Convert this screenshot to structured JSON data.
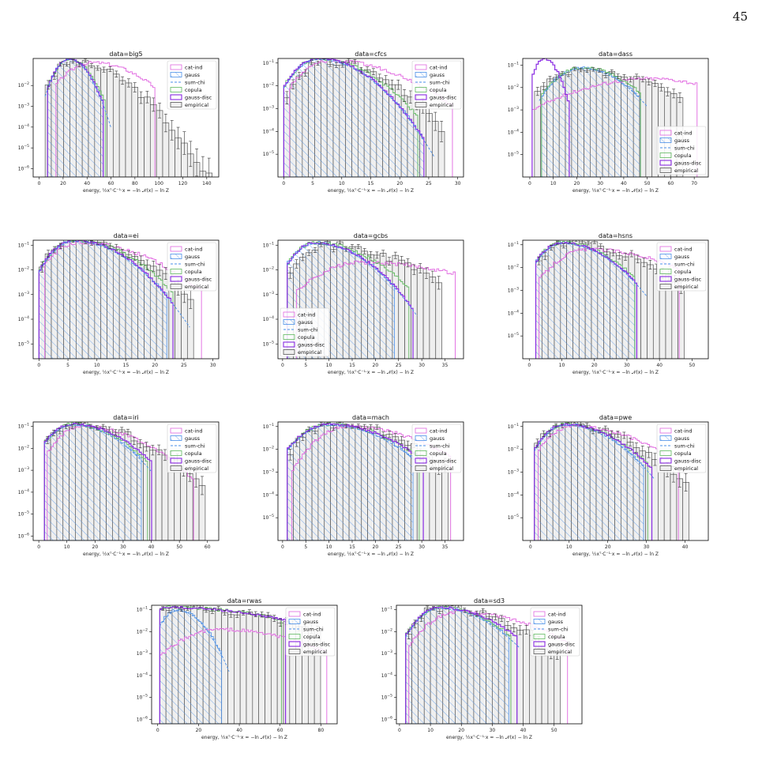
{
  "page": {
    "number": "45"
  },
  "chart_data": [
    {
      "type": "histogram",
      "title": "data=big5",
      "xlabel": "energy, ½xᵀ·C⁻¹·x = −ln 𝒩(x) − ln Z",
      "xlim": [
        -5,
        150
      ],
      "ylim": [
        -6.4,
        -0.7
      ],
      "xticks": [
        0,
        20,
        40,
        60,
        80,
        100,
        120,
        140
      ],
      "yticks": [
        -6,
        -5,
        -4,
        -3,
        -2
      ],
      "legend_position": "top-right",
      "peaks": {
        "cat-ind": [
          45,
          -0.9,
          14,
          22
        ],
        "gauss": [
          25,
          -0.7,
          7,
          9
        ],
        "copula": [
          25,
          -0.75,
          7,
          10
        ],
        "gauss-disc": [
          25,
          -0.7,
          7,
          9
        ],
        "empirical": [
          27,
          -0.9,
          9,
          22
        ]
      },
      "ranges": {
        "cat-ind": [
          14,
          95
        ],
        "gauss": [
          7,
          52
        ],
        "copula": [
          7,
          55
        ],
        "gauss-disc": [
          7,
          52
        ],
        "empirical": [
          5,
          140
        ]
      },
      "sum_chi_range": [
        5,
        60
      ]
    },
    {
      "type": "histogram",
      "title": "data=cfcs",
      "xlabel": "energy, ½xᵀ·C⁻¹·x = −ln 𝒩(x) − ln Z",
      "xlim": [
        -1,
        31
      ],
      "ylim": [
        -6,
        -0.8
      ],
      "xticks": [
        0,
        5,
        10,
        15,
        20,
        25,
        30
      ],
      "yticks": [
        -5,
        -4,
        -3,
        -2,
        -1
      ],
      "legend_position": "top-right",
      "peaks": {
        "cat-ind": [
          8,
          -0.9,
          3,
          7
        ],
        "gauss": [
          6,
          -0.8,
          2.5,
          4.5
        ],
        "copula": [
          6,
          -0.8,
          2.5,
          5
        ],
        "gauss-disc": [
          6,
          -0.8,
          2.5,
          4.5
        ],
        "empirical": [
          7,
          -0.9,
          2.5,
          5.5
        ]
      },
      "ranges": {
        "cat-ind": [
          1,
          29
        ],
        "gauss": [
          0,
          24
        ],
        "copula": [
          0,
          23
        ],
        "gauss-disc": [
          0,
          24
        ],
        "empirical": [
          0,
          27
        ]
      },
      "sum_chi_range": [
        0,
        26
      ]
    },
    {
      "type": "histogram",
      "title": "data=dass",
      "xlabel": "energy, ½xᵀ·C⁻¹·x = −ln 𝒩(x) − ln Z",
      "xlim": [
        -3,
        76
      ],
      "ylim": [
        -6,
        -0.7
      ],
      "xticks": [
        0,
        10,
        20,
        30,
        40,
        50,
        60,
        70
      ],
      "yticks": [
        -5,
        -4,
        -3,
        -2,
        -1
      ],
      "legend_position": "bottom-right",
      "peaks": {
        "cat-ind": [
          52,
          -1.6,
          20,
          18
        ],
        "gauss": [
          22,
          -1.1,
          7,
          10
        ],
        "copula": [
          22,
          -1.1,
          7,
          11
        ],
        "gauss-disc": [
          6,
          -0.7,
          2.5,
          3.5
        ],
        "empirical": [
          22,
          -1.3,
          9,
          18
        ]
      },
      "ranges": {
        "cat-ind": [
          1,
          71
        ],
        "gauss": [
          5,
          47
        ],
        "copula": [
          5,
          47
        ],
        "gauss-disc": [
          1,
          16
        ],
        "empirical": [
          2,
          65
        ]
      },
      "sum_chi_range": [
        4,
        50
      ]
    },
    {
      "type": "histogram",
      "title": "data=ei",
      "xlabel": "energy, ½xᵀ·C⁻¹·x = −ln 𝒩(x) − ln Z",
      "xlim": [
        -1,
        31
      ],
      "ylim": [
        -5.6,
        -0.8
      ],
      "xticks": [
        0,
        5,
        10,
        15,
        20,
        25,
        30
      ],
      "yticks": [
        -5,
        -4,
        -3,
        -2,
        -1
      ],
      "legend_position": "top-right",
      "peaks": {
        "cat-ind": [
          7,
          -0.9,
          3,
          7
        ],
        "gauss": [
          6,
          -0.8,
          2.5,
          5
        ],
        "copula": [
          6,
          -0.8,
          2.5,
          5.5
        ],
        "gauss-disc": [
          6,
          -0.8,
          2.5,
          5
        ],
        "empirical": [
          6,
          -0.8,
          2.5,
          6
        ]
      },
      "ranges": {
        "cat-ind": [
          1,
          28
        ],
        "gauss": [
          0,
          22
        ],
        "copula": [
          0,
          23
        ],
        "gauss-disc": [
          0,
          23
        ],
        "empirical": [
          0,
          26
        ]
      },
      "sum_chi_range": [
        0,
        26
      ]
    },
    {
      "type": "histogram",
      "title": "data=gcbs",
      "xlabel": "energy, ½xᵀ·C⁻¹·x = −ln 𝒩(x) − ln Z",
      "xlim": [
        -1,
        39
      ],
      "ylim": [
        -5.6,
        -0.8
      ],
      "xticks": [
        0,
        5,
        10,
        15,
        20,
        25,
        30,
        35
      ],
      "yticks": [
        -5,
        -4,
        -3,
        -2,
        -1
      ],
      "legend_position": "bottom-left",
      "peaks": {
        "cat-ind": [
          17,
          -1.7,
          6,
          14
        ],
        "gauss": [
          7,
          -0.9,
          3,
          6
        ],
        "copula": [
          7,
          -0.9,
          3,
          7
        ],
        "gauss-disc": [
          7,
          -0.9,
          3,
          6
        ],
        "empirical": [
          8,
          -1.0,
          3,
          10
        ]
      },
      "ranges": {
        "cat-ind": [
          3,
          37
        ],
        "gauss": [
          1,
          24
        ],
        "copula": [
          1,
          27
        ],
        "gauss-disc": [
          1,
          28
        ],
        "empirical": [
          1,
          33
        ]
      },
      "sum_chi_range": [
        1,
        29
      ]
    },
    {
      "type": "histogram",
      "title": "data=hsns",
      "xlabel": "energy, ½xᵀ·C⁻¹·x = −ln 𝒩(x) − ln Z",
      "xlim": [
        -2,
        55
      ],
      "ylim": [
        -6,
        -0.8
      ],
      "xticks": [
        0,
        10,
        20,
        30,
        40,
        50
      ],
      "yticks": [
        -5,
        -4,
        -3,
        -2,
        -1
      ],
      "legend_position": "top-right",
      "peaks": {
        "cat-ind": [
          18,
          -1.2,
          6,
          14
        ],
        "gauss": [
          10,
          -0.9,
          4,
          8
        ],
        "copula": [
          10,
          -0.9,
          4,
          8.5
        ],
        "gauss-disc": [
          10,
          -0.9,
          4,
          8
        ],
        "empirical": [
          11,
          -0.9,
          4,
          12
        ]
      },
      "ranges": {
        "cat-ind": [
          3,
          46
        ],
        "gauss": [
          2,
          32
        ],
        "copula": [
          2,
          32
        ],
        "gauss-disc": [
          2,
          33
        ],
        "empirical": [
          2,
          47
        ]
      },
      "sum_chi_range": [
        2,
        36
      ]
    },
    {
      "type": "histogram",
      "title": "data=iri",
      "xlabel": "energy, ½xᵀ·C⁻¹·x = −ln 𝒩(x) − ln Z",
      "xlim": [
        -2,
        64
      ],
      "ylim": [
        -6.2,
        -0.8
      ],
      "xticks": [
        0,
        10,
        20,
        30,
        40,
        50,
        60
      ],
      "yticks": [
        -6,
        -5,
        -4,
        -3,
        -2,
        -1
      ],
      "legend_position": "top-right",
      "peaks": {
        "cat-ind": [
          15,
          -1.0,
          5,
          12
        ],
        "gauss": [
          12,
          -0.9,
          5,
          9
        ],
        "copula": [
          12,
          -0.9,
          5,
          9.5
        ],
        "gauss-disc": [
          12,
          -0.9,
          5,
          10
        ],
        "empirical": [
          12,
          -0.9,
          5,
          13
        ]
      },
      "ranges": {
        "cat-ind": [
          3,
          55
        ],
        "gauss": [
          2,
          36
        ],
        "copula": [
          2,
          38
        ],
        "gauss-disc": [
          2,
          40
        ],
        "empirical": [
          2,
          58
        ]
      },
      "sum_chi_range": [
        2,
        40
      ]
    },
    {
      "type": "histogram",
      "title": "data=mach",
      "xlabel": "energy, ½xᵀ·C⁻¹·x = −ln 𝒩(x) − ln Z",
      "xlim": [
        -1,
        39
      ],
      "ylim": [
        -6,
        -0.8
      ],
      "xticks": [
        0,
        5,
        10,
        15,
        20,
        25,
        30,
        35
      ],
      "yticks": [
        -5,
        -4,
        -3,
        -2,
        -1
      ],
      "legend_position": "top-right",
      "peaks": {
        "cat-ind": [
          14,
          -1.0,
          4,
          9
        ],
        "gauss": [
          10,
          -0.9,
          4,
          7
        ],
        "copula": [
          10,
          -0.9,
          4,
          7.5
        ],
        "gauss-disc": [
          10,
          -0.9,
          4,
          7.5
        ],
        "empirical": [
          11,
          -0.9,
          4,
          8
        ]
      },
      "ranges": {
        "cat-ind": [
          2,
          36
        ],
        "gauss": [
          1,
          28
        ],
        "copula": [
          1,
          29
        ],
        "gauss-disc": [
          1,
          30
        ],
        "empirical": [
          1,
          35
        ]
      },
      "sum_chi_range": [
        1,
        31
      ]
    },
    {
      "type": "histogram",
      "title": "data=pwe",
      "xlabel": "energy, ½xᵀ·C⁻¹·x = −ln 𝒩(x) − ln Z",
      "xlim": [
        -2,
        46
      ],
      "ylim": [
        -6,
        -0.8
      ],
      "xticks": [
        0,
        10,
        20,
        30,
        40
      ],
      "yticks": [
        -5,
        -4,
        -3,
        -2,
        -1
      ],
      "legend_position": "top-right",
      "peaks": {
        "cat-ind": [
          11,
          -1.0,
          4,
          10
        ],
        "gauss": [
          9,
          -0.9,
          3.5,
          7
        ],
        "copula": [
          9,
          -0.9,
          3.5,
          7.5
        ],
        "gauss-disc": [
          9,
          -0.9,
          3.5,
          7.5
        ],
        "empirical": [
          9,
          -0.9,
          3.5,
          9
        ]
      },
      "ranges": {
        "cat-ind": [
          2,
          38
        ],
        "gauss": [
          1,
          29
        ],
        "copula": [
          1,
          30
        ],
        "gauss-disc": [
          1,
          31
        ],
        "empirical": [
          1,
          40
        ]
      },
      "sum_chi_range": [
        1,
        32
      ]
    },
    {
      "type": "histogram",
      "title": "data=rwas",
      "xlabel": "energy, ½xᵀ·C⁻¹·x = −ln 𝒩(x) − ln Z",
      "xlim": [
        -3,
        88
      ],
      "ylim": [
        -6.2,
        -0.8
      ],
      "xticks": [
        0,
        20,
        40,
        60,
        80
      ],
      "yticks": [
        -6,
        -5,
        -4,
        -3,
        -2,
        -1
      ],
      "legend_position": "top-right",
      "peaks": {
        "cat-ind": [
          30,
          -1.9,
          12,
          24
        ],
        "gauss": [
          10,
          -1.0,
          5,
          7
        ],
        "copula": [
          5,
          -0.9,
          5,
          35
        ],
        "gauss-disc": [
          5,
          -0.9,
          5,
          35
        ],
        "empirical": [
          4,
          -0.9,
          5,
          35
        ]
      },
      "ranges": {
        "cat-ind": [
          1,
          82
        ],
        "gauss": [
          1,
          31
        ],
        "copula": [
          1,
          60
        ],
        "gauss-disc": [
          1,
          62
        ],
        "empirical": [
          1,
          78
        ]
      },
      "sum_chi_range": [
        1,
        35
      ]
    },
    {
      "type": "histogram",
      "title": "data=sd3",
      "xlabel": "energy, ½xᵀ·C⁻¹·x = −ln 𝒩(x) − ln Z",
      "xlim": [
        -1,
        59
      ],
      "ylim": [
        -6.2,
        -0.8
      ],
      "xticks": [
        0,
        10,
        20,
        30,
        40,
        50
      ],
      "yticks": [
        -6,
        -5,
        -4,
        -3,
        -2,
        -1
      ],
      "legend_position": "top-right",
      "peaks": {
        "cat-ind": [
          19,
          -1.1,
          6,
          14
        ],
        "gauss": [
          13,
          -0.9,
          4.5,
          9
        ],
        "copula": [
          13,
          -0.9,
          4.5,
          9.5
        ],
        "gauss-disc": [
          13,
          -0.9,
          4.5,
          10
        ],
        "empirical": [
          13,
          -0.9,
          4.5,
          12
        ]
      },
      "ranges": {
        "cat-ind": [
          3,
          54
        ],
        "gauss": [
          2,
          35
        ],
        "copula": [
          2,
          36
        ],
        "gauss-disc": [
          2,
          38
        ],
        "empirical": [
          2,
          52
        ]
      },
      "sum_chi_range": [
        2,
        39
      ]
    }
  ],
  "legend": [
    {
      "name": "cat-ind",
      "color": "#e066e0"
    },
    {
      "name": "gauss",
      "color": "#4a8fe8"
    },
    {
      "name": "sum-chi",
      "color": "#4a8fe8"
    },
    {
      "name": "copula",
      "color": "#5fb85f"
    },
    {
      "name": "gauss-disc",
      "color": "#8a2be2"
    },
    {
      "name": "empirical",
      "color": "#555555"
    }
  ]
}
